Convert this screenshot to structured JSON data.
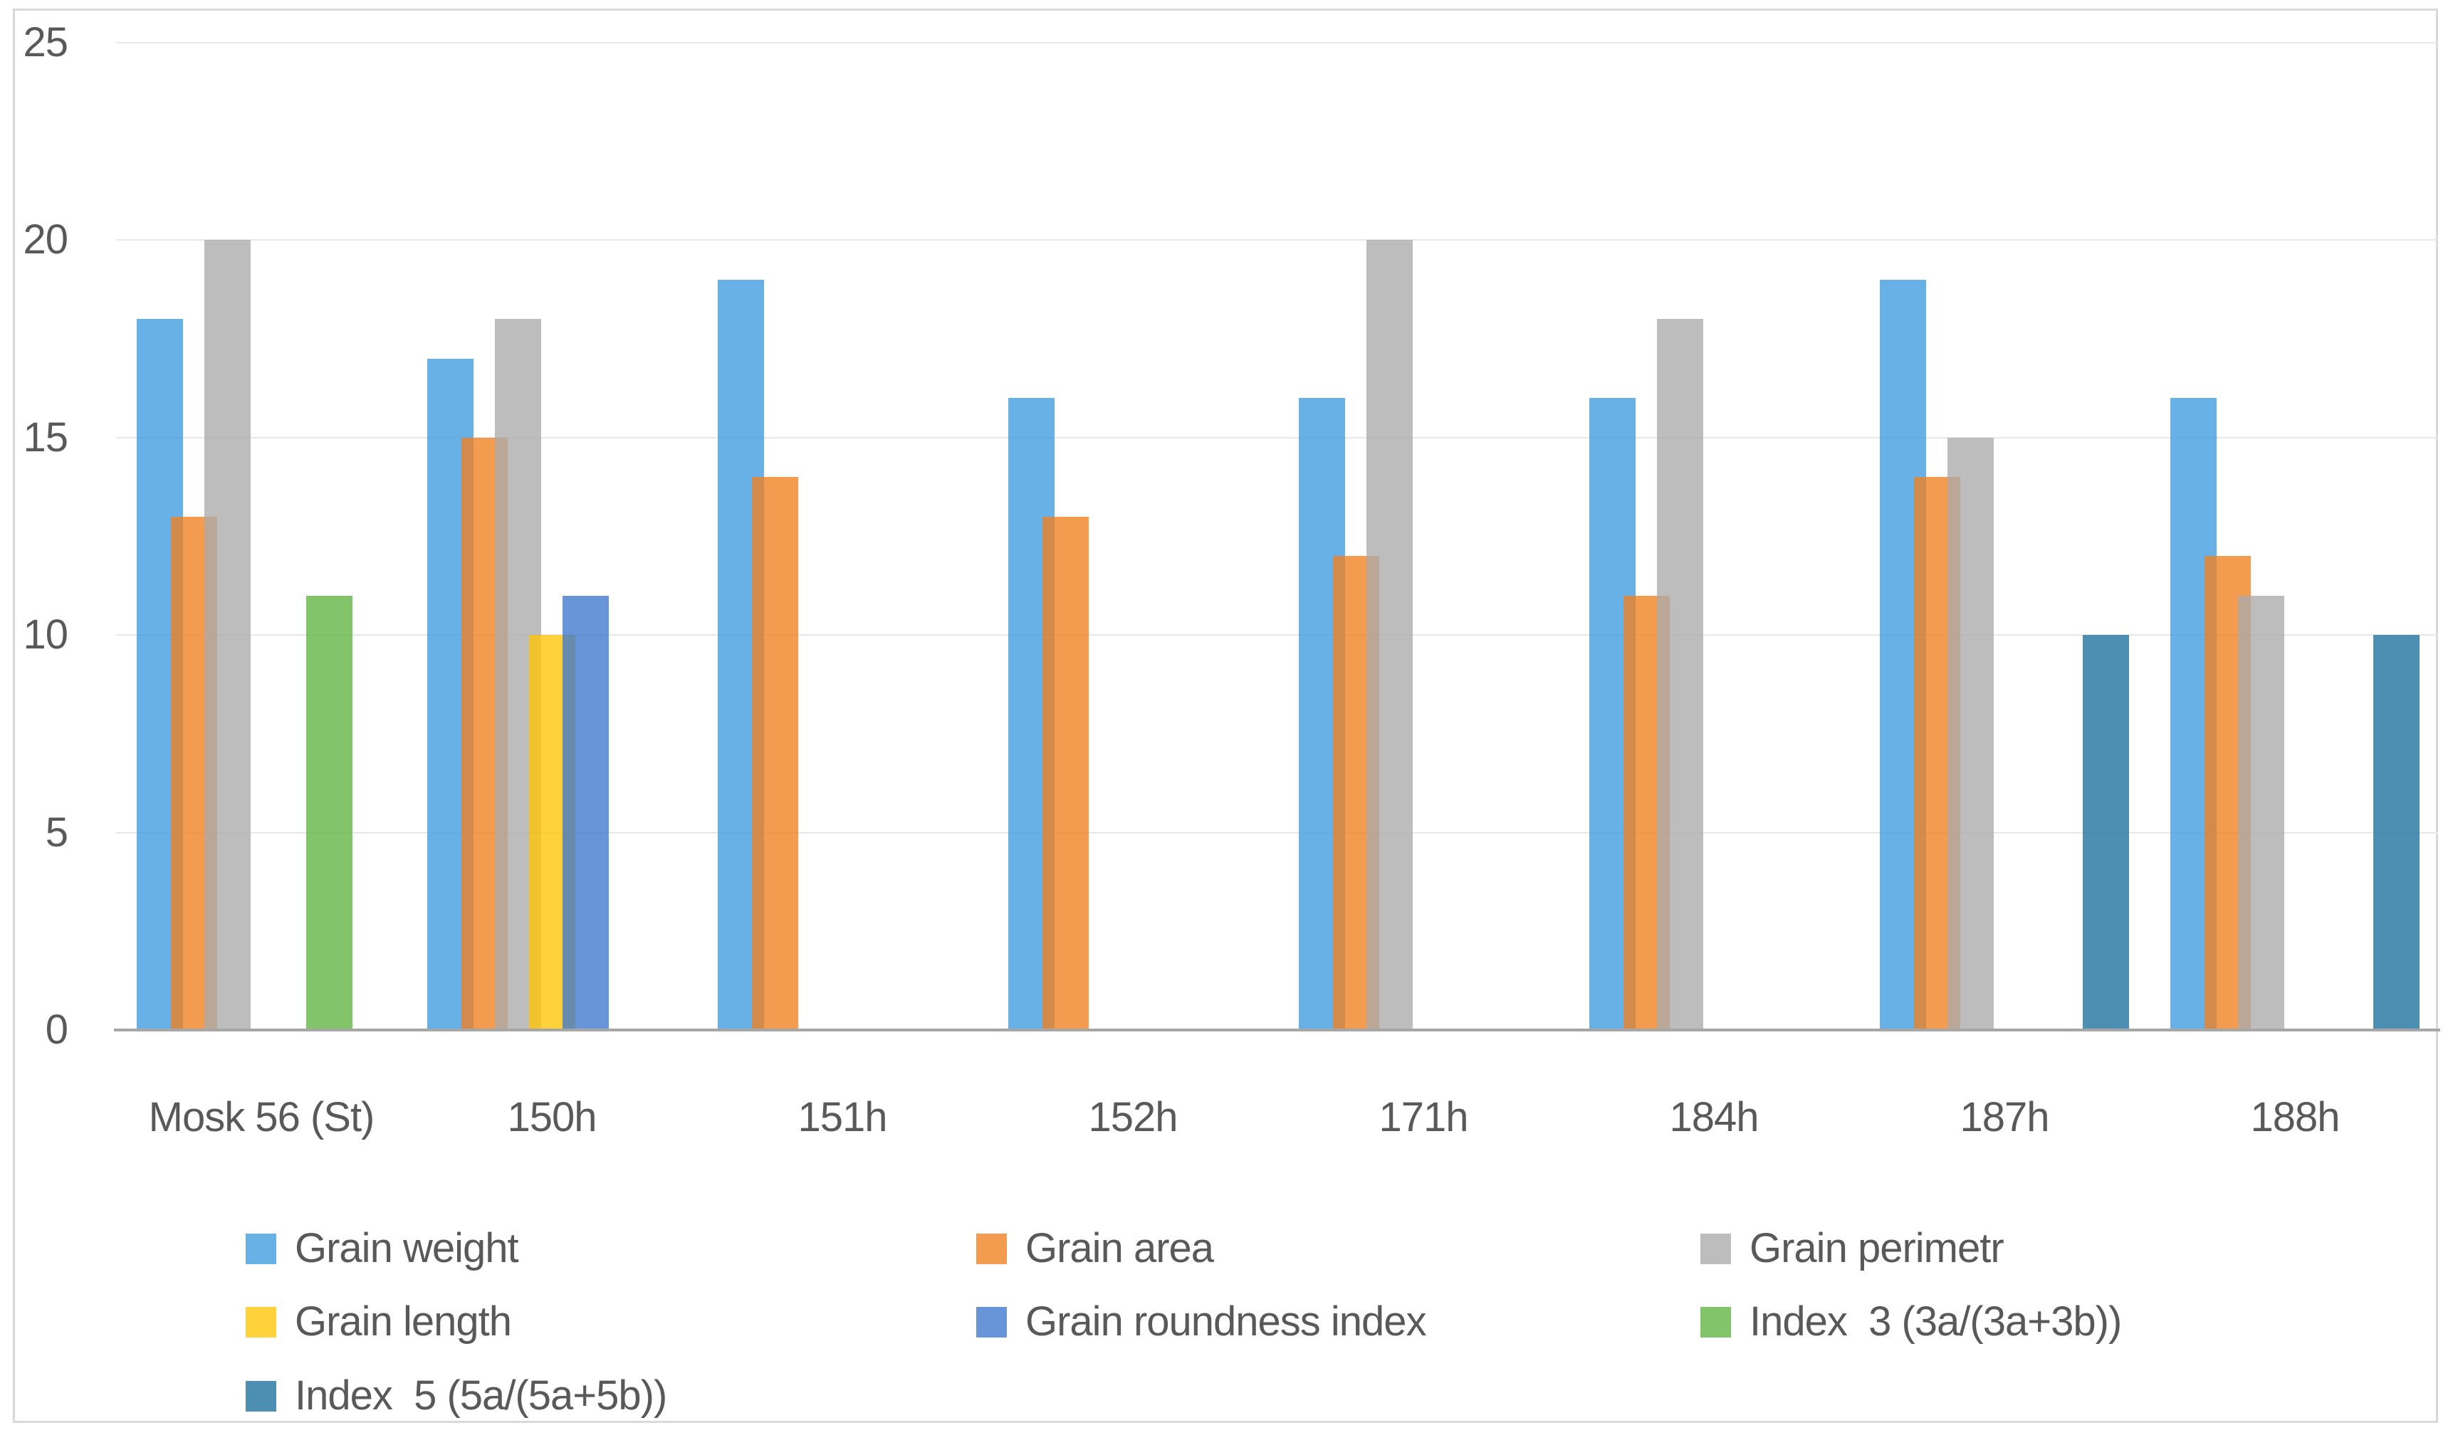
{
  "chart_data": {
    "type": "bar",
    "title": "",
    "categories": [
      "Mosk 56 (St)",
      "150h",
      "151h",
      "152h",
      "171h",
      "184h",
      "187h",
      "188h"
    ],
    "series": [
      {
        "name": "Grain weight",
        "color": "rgba(62,155,224,0.78)",
        "values": [
          18,
          17,
          19,
          16,
          16,
          16,
          19,
          16
        ]
      },
      {
        "name": "Grain area",
        "color": "rgba(240,128,31,0.78)",
        "values": [
          13,
          15,
          14,
          13,
          12,
          11,
          14,
          12
        ]
      },
      {
        "name": "Grain perimetr",
        "color": "rgba(171,171,171,0.78)",
        "values": [
          20,
          18,
          null,
          null,
          20,
          18,
          15,
          11
        ]
      },
      {
        "name": "Grain length",
        "color": "rgba(255,196,4,0.78)",
        "values": [
          null,
          10,
          null,
          null,
          null,
          null,
          null,
          null
        ]
      },
      {
        "name": "Grain roundness index",
        "color": "rgba(60,119,204,0.78)",
        "values": [
          null,
          11,
          null,
          null,
          null,
          null,
          null,
          null
        ]
      },
      {
        "name": "Index  3 (3a/(3a+3b))",
        "color": "rgba(93,179,63,0.78)",
        "values": [
          11,
          null,
          null,
          null,
          null,
          null,
          null,
          null
        ]
      },
      {
        "name": "Index  5 (5a/(5a+5b))",
        "color": "rgba(26,111,158,0.78)",
        "values": [
          null,
          null,
          null,
          null,
          null,
          null,
          10,
          10
        ]
      }
    ],
    "y_axis": {
      "min": 0,
      "max": 25,
      "step": 5,
      "ticks": [
        0,
        5,
        10,
        15,
        20,
        25
      ]
    },
    "grid": true,
    "legend_position": "bottom",
    "colors": {
      "axis_line": "#a6a6a6",
      "gridline": "#e8e8e8",
      "frame_border": "#d9d9d9",
      "text": "#595959"
    }
  }
}
